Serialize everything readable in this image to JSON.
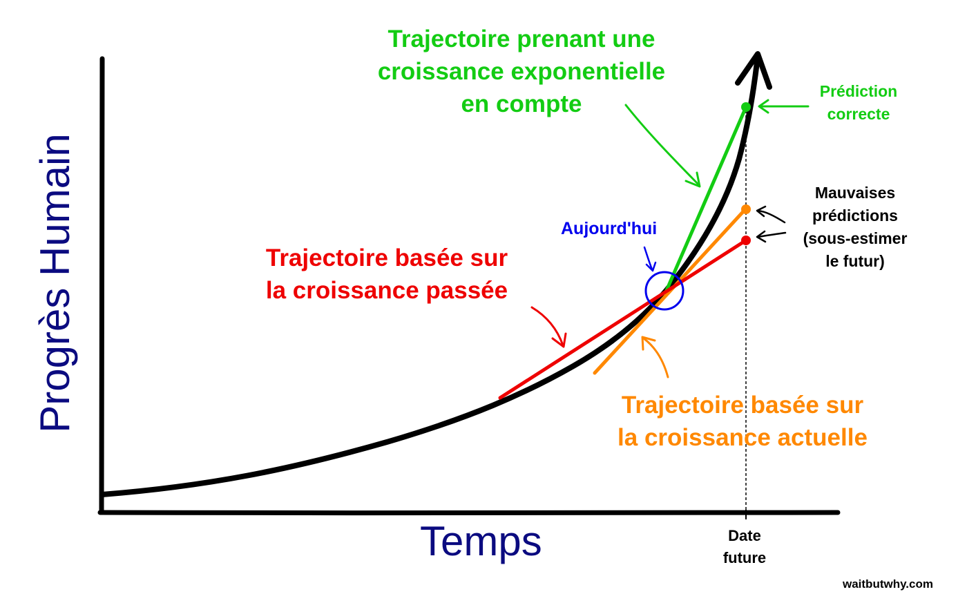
{
  "axes": {
    "y_label": "Progrès Humain",
    "x_label": "Temps",
    "future_tick": [
      "Date",
      "future"
    ]
  },
  "labels": {
    "exponential": [
      "Trajectoire prenant une",
      "croissance exponentielle",
      "en compte"
    ],
    "correct_prediction": [
      "Prédiction",
      "correcte"
    ],
    "bad_predictions": [
      "Mauvaises",
      "prédictions",
      "(sous-estimer",
      "le futur)"
    ],
    "today": "Aujourd'hui",
    "past_growth": [
      "Trajectoire basée sur",
      "la croissance passée"
    ],
    "current_growth": [
      "Trajectoire basée sur",
      "la croissance actuelle"
    ]
  },
  "credit": "waitbutwhy.com",
  "colors": {
    "curve": "#000000",
    "exponential": "#13cc13",
    "past": "#ee0000",
    "current": "#ff8800",
    "today": "#0000ee",
    "axis_title": "#0b0b80"
  }
}
